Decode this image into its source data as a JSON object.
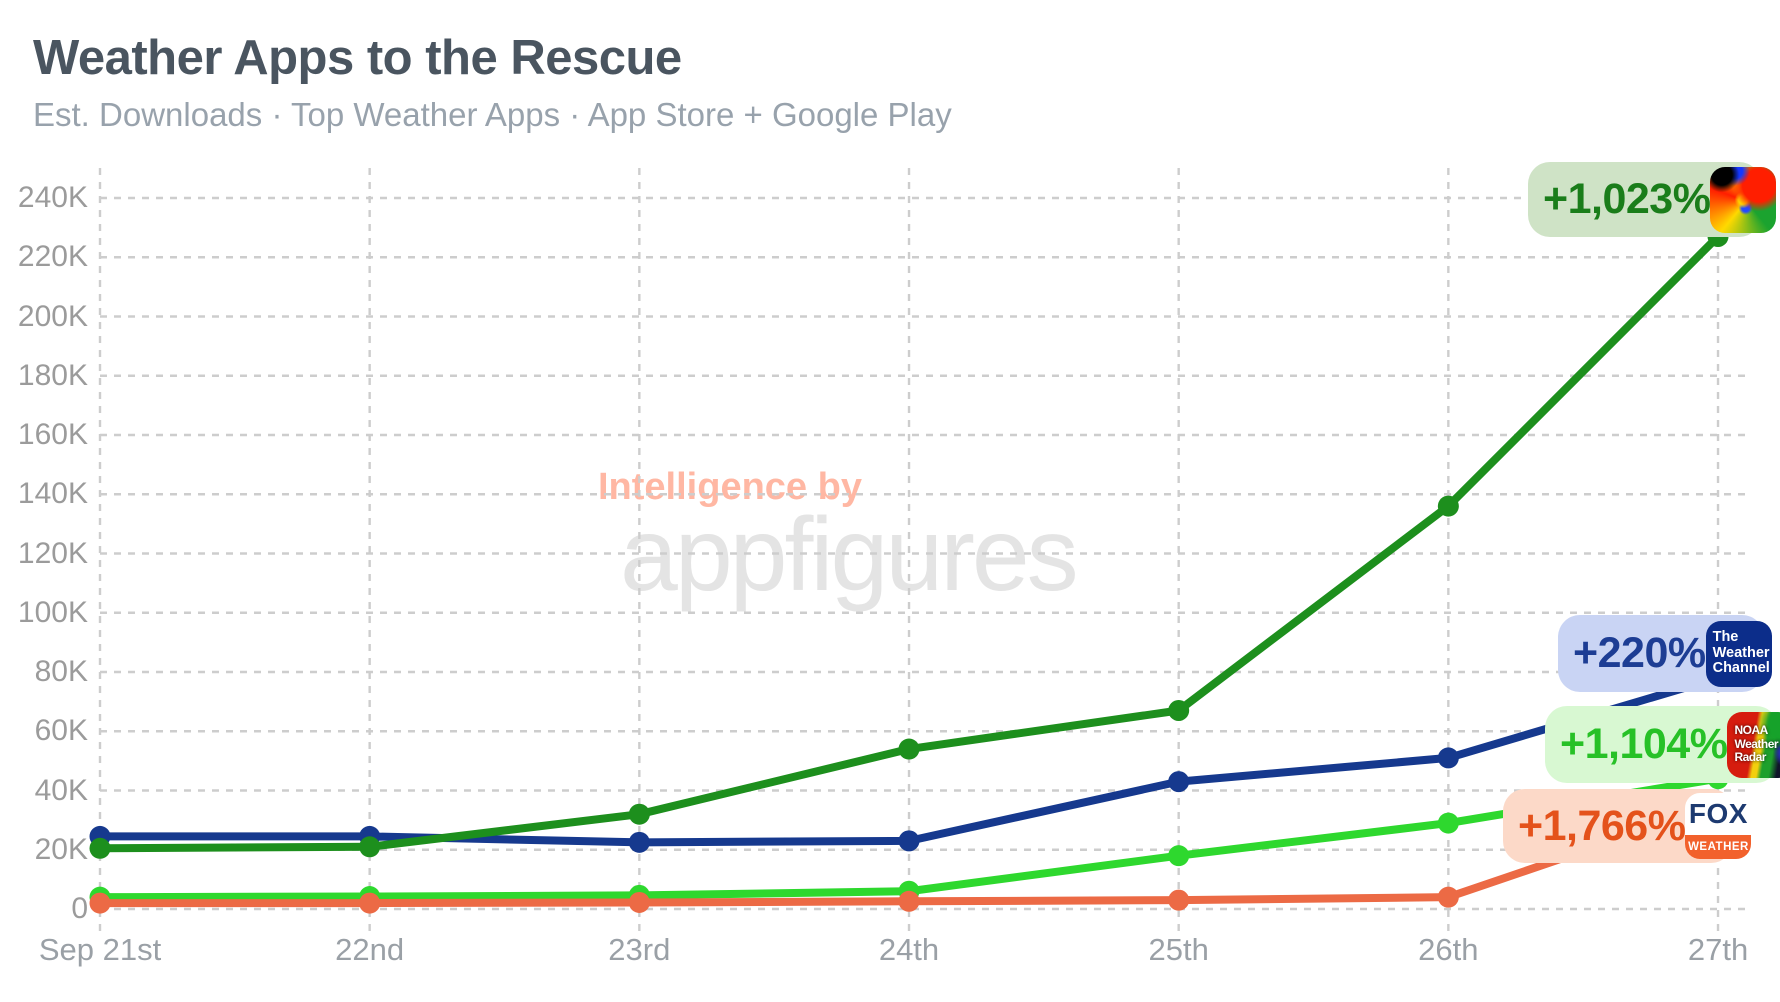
{
  "header": {
    "title": "Weather Apps to the Rescue",
    "subtitle": "Est. Downloads · Top Weather Apps · App Store + Google Play"
  },
  "watermark": {
    "line1": "Intelligence by",
    "line2": "appfigures"
  },
  "chart_data": {
    "type": "line",
    "title": "Weather Apps to the Rescue",
    "subtitle": "Est. Downloads · Top Weather Apps · App Store + Google Play",
    "x_labels": [
      "Sep 21st",
      "22nd",
      "23rd",
      "24th",
      "25th",
      "26th",
      "27th"
    ],
    "y_tick_labels": [
      "0",
      "20K",
      "40K",
      "60K",
      "80K",
      "100K",
      "120K",
      "140K",
      "160K",
      "180K",
      "200K",
      "220K",
      "240K"
    ],
    "ylim": [
      0,
      240000
    ],
    "grid": "dashed",
    "legend_position": "inline-badges-right",
    "series": [
      {
        "name": "the-weather-channel",
        "color": "#16398e",
        "change_label": "+220%",
        "values": [
          24500,
          24500,
          22500,
          23000,
          43000,
          51000,
          78000
        ]
      },
      {
        "name": "hurricane-radar-app",
        "color": "#1d8f1d",
        "change_label": "+1,023%",
        "values": [
          20500,
          21000,
          32000,
          54000,
          67000,
          136000,
          227000
        ]
      },
      {
        "name": "noaa-weather-radar",
        "color": "#2ed82e",
        "change_label": "+1,104%",
        "values": [
          4000,
          4200,
          4600,
          6000,
          18000,
          29000,
          44000
        ]
      },
      {
        "name": "fox-weather",
        "color": "#ec6a45",
        "change_label": "+1,766%",
        "values": [
          2000,
          2000,
          2200,
          2600,
          3000,
          4000,
          35000
        ]
      }
    ]
  },
  "badges": [
    {
      "label": "+1,023%",
      "bg": "#cfe3c6",
      "text_color": "#1a7d1a",
      "icon": "hurricane-radar-icon"
    },
    {
      "label": "+220%",
      "bg": "#c9d4f4",
      "text_color": "#1d3d94",
      "icon": "the-weather-channel-icon",
      "icon_lines": [
        "The",
        "Weather",
        "Channel"
      ]
    },
    {
      "label": "+1,104%",
      "bg": "#d8f8d2",
      "text_color": "#27c127",
      "icon": "noaa-weather-radar-icon",
      "icon_lines": [
        "NOAA",
        "Weather",
        "Radar"
      ]
    },
    {
      "label": "+1,766%",
      "bg": "#fcd9c8",
      "text_color": "#e4521b",
      "icon": "fox-weather-icon",
      "fox_top": "FOX",
      "fox_bottom": "WEATHER"
    }
  ]
}
